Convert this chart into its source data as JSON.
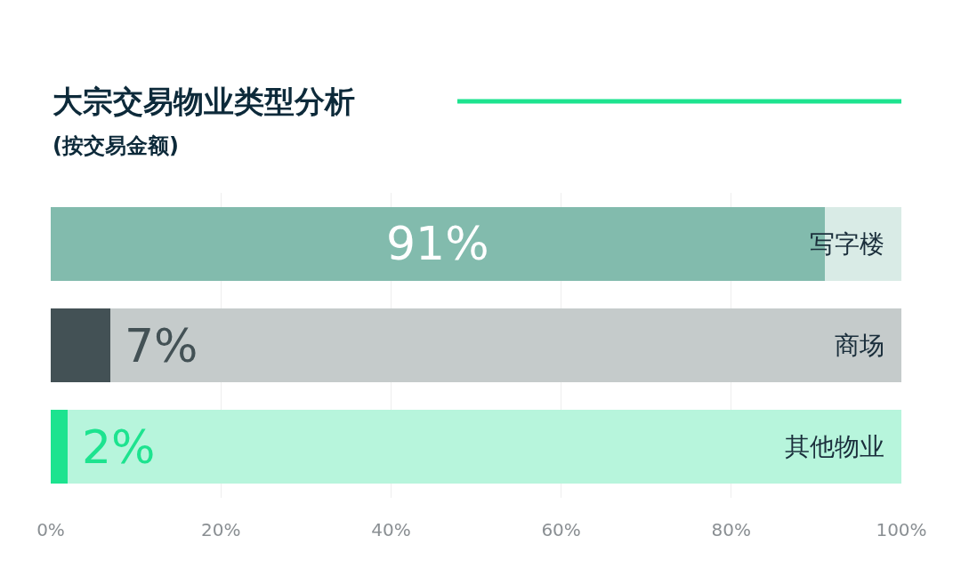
{
  "chart_data": {
    "type": "bar",
    "orientation": "horizontal",
    "stacked": true,
    "title": "大宗交易物业类型分析",
    "subtitle": "(按交易金额)",
    "categories": [
      "写字楼",
      "商场",
      "其他物业"
    ],
    "series": [
      {
        "colors": [
          "#82bbad",
          "#435155",
          "#1de38f"
        ],
        "values": [
          91,
          7,
          2
        ],
        "value_labels": [
          "91%",
          "7%",
          "2%"
        ]
      },
      {
        "colors": [
          "#d9ebe6",
          "#c5cbcb",
          "#b7f5dc"
        ],
        "values": [
          9,
          93,
          98
        ]
      }
    ],
    "xlim": [
      0,
      100
    ],
    "xticks": [
      {
        "value": 0,
        "label": "0%"
      },
      {
        "value": 20,
        "label": "20%"
      },
      {
        "value": 40,
        "label": "40%"
      },
      {
        "value": 60,
        "label": "60%"
      },
      {
        "value": 80,
        "label": "80%"
      },
      {
        "value": 100,
        "label": "100%"
      }
    ],
    "grid": "x",
    "tick_labels": "x"
  }
}
